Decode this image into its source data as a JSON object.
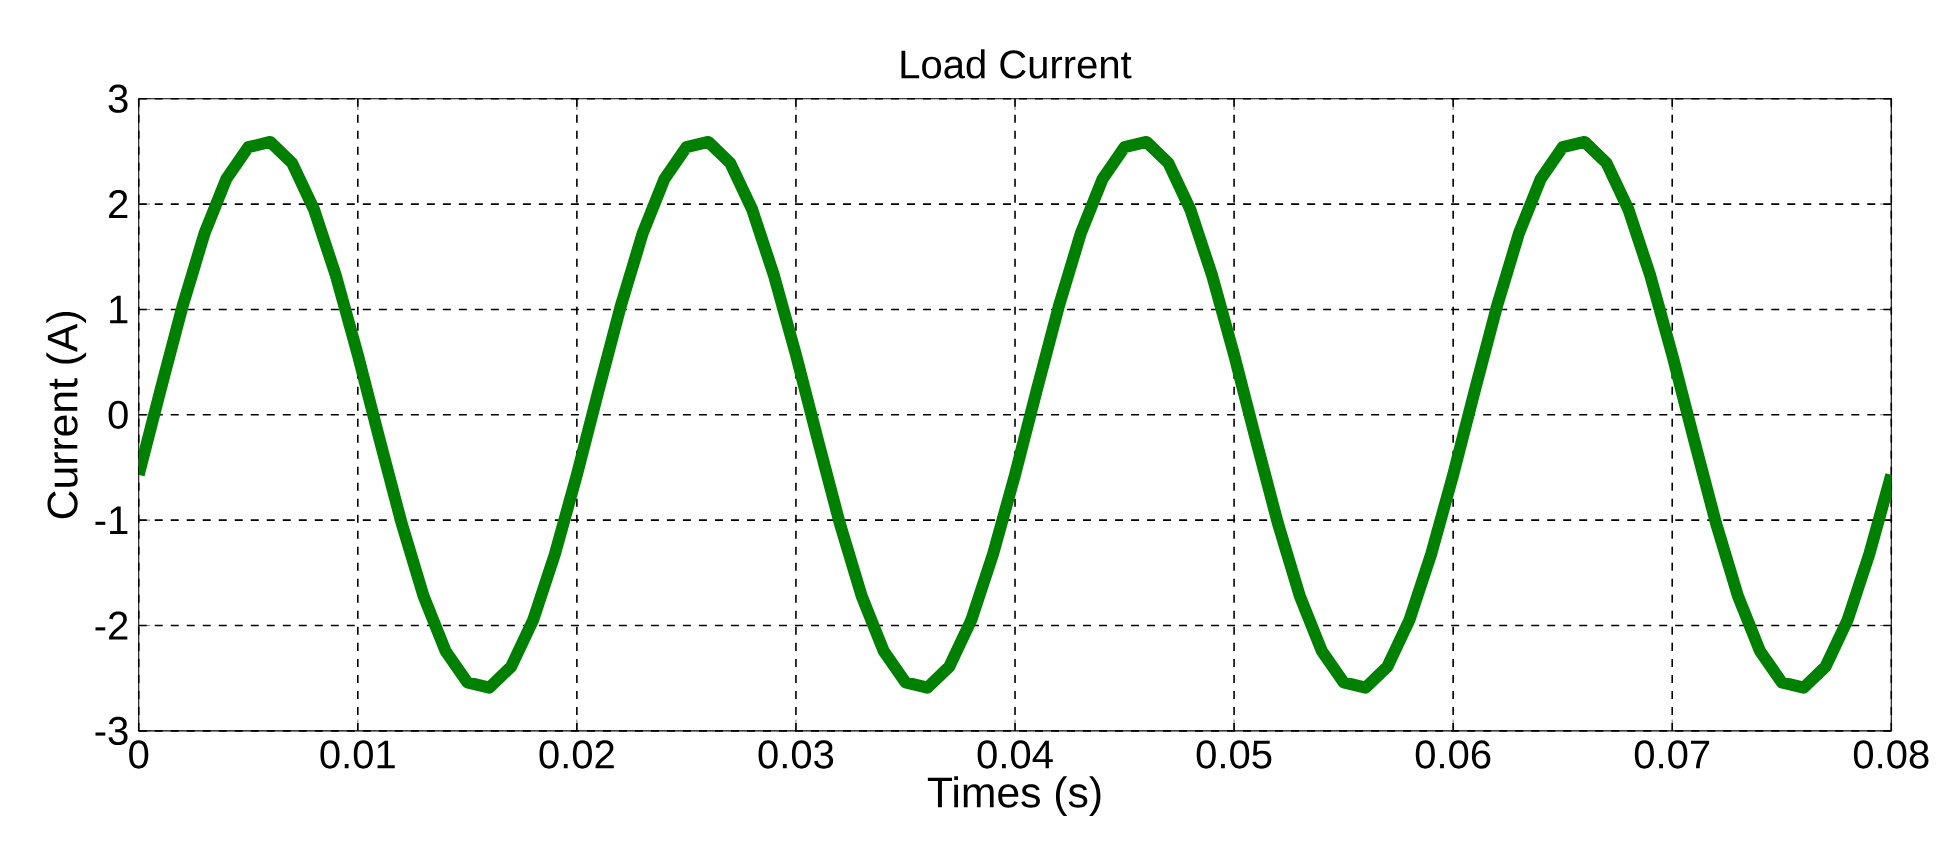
{
  "chart_data": {
    "type": "line",
    "title": "Load Current",
    "xlabel": "Times (s)",
    "ylabel": "Current (A)",
    "x": [
      0,
      0.001,
      0.002,
      0.003,
      0.004,
      0.005,
      0.006,
      0.007,
      0.008,
      0.009,
      0.01,
      0.011,
      0.012,
      0.013,
      0.014,
      0.015,
      0.016,
      0.017,
      0.018,
      0.019,
      0.02,
      0.021,
      0.022,
      0.023,
      0.024,
      0.025,
      0.026,
      0.027,
      0.028,
      0.029,
      0.03,
      0.031,
      0.032,
      0.033,
      0.034,
      0.035,
      0.036,
      0.037,
      0.038,
      0.039,
      0.04,
      0.041,
      0.042,
      0.043,
      0.044,
      0.045,
      0.046,
      0.047,
      0.048,
      0.049,
      0.05,
      0.051,
      0.052,
      0.053,
      0.054,
      0.055,
      0.056,
      0.057,
      0.058,
      0.059,
      0.06,
      0.061,
      0.062,
      0.063,
      0.064,
      0.065,
      0.066,
      0.067,
      0.068,
      0.069,
      0.07,
      0.071,
      0.072,
      0.073,
      0.074,
      0.075,
      0.076,
      0.077,
      0.078,
      0.079,
      0.08
    ],
    "series": [
      {
        "color": "#008000",
        "values": [
          -0.57,
          0.24,
          1.03,
          1.72,
          2.24,
          2.54,
          2.59,
          2.39,
          1.95,
          1.32,
          0.57,
          -0.24,
          -1.03,
          -1.72,
          -2.24,
          -2.54,
          -2.59,
          -2.39,
          -1.95,
          -1.32,
          -0.57,
          0.24,
          1.03,
          1.72,
          2.24,
          2.54,
          2.59,
          2.39,
          1.95,
          1.32,
          0.57,
          -0.24,
          -1.03,
          -1.72,
          -2.24,
          -2.54,
          -2.59,
          -2.39,
          -1.95,
          -1.32,
          -0.57,
          0.24,
          1.03,
          1.72,
          2.24,
          2.54,
          2.59,
          2.39,
          1.95,
          1.32,
          0.57,
          -0.24,
          -1.03,
          -1.72,
          -2.24,
          -2.54,
          -2.59,
          -2.39,
          -1.95,
          -1.32,
          -0.57,
          0.24,
          1.03,
          1.72,
          2.24,
          2.54,
          2.59,
          2.39,
          1.95,
          1.32,
          0.57,
          -0.24,
          -1.03,
          -1.72,
          -2.24,
          -2.54,
          -2.59,
          -2.39,
          -1.95,
          -1.32,
          -0.57
        ]
      }
    ],
    "xlim": [
      0,
      0.08
    ],
    "ylim": [
      -3,
      3
    ],
    "xticks": [
      0,
      0.01,
      0.02,
      0.03,
      0.04,
      0.05,
      0.06,
      0.07,
      0.08
    ],
    "yticks": [
      -3,
      -2,
      -1,
      0,
      1,
      2,
      3
    ],
    "grid": true
  }
}
